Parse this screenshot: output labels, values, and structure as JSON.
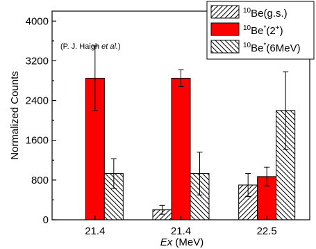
{
  "chart_data": {
    "type": "bar",
    "categories": [
      "21.4",
      "21.4",
      "22.5"
    ],
    "xlabel": {
      "italic": "Ex",
      "rest": " (MeV)"
    },
    "ylabel": "Normalized Counts",
    "ylim": [
      0,
      4200
    ],
    "yticks": [
      0,
      800,
      1600,
      2400,
      3200,
      4000
    ],
    "grid": false,
    "legend_position": "top-right",
    "annotation": {
      "prefix": "(P. J. Haigh ",
      "italic": "et al.",
      "suffix": ")"
    },
    "series": [
      {
        "name": "10Be(g.s.)",
        "legend": {
          "sup": "10",
          "base": "Be",
          "star": "",
          "suffix": "(g.s.)",
          "suffix_sup": ""
        },
        "color": "#ffffff",
        "pattern": "hatch-fwd",
        "values": [
          null,
          200,
          700
        ],
        "errors": [
          null,
          90,
          230
        ]
      },
      {
        "name": "10Be*(2+)",
        "legend": {
          "sup": "10",
          "base": "Be",
          "star": "*",
          "suffix": "(2",
          "suffix_sup": "+",
          "suffix_end": ")"
        },
        "color": "#ff0000",
        "pattern": "solid",
        "values": [
          2850,
          2850,
          870
        ],
        "errors": [
          650,
          170,
          190
        ]
      },
      {
        "name": "10Be*(6MeV)",
        "legend": {
          "sup": "10",
          "base": "Be",
          "star": "*",
          "suffix": "(6MeV)",
          "suffix_sup": ""
        },
        "color": "#ffffff",
        "pattern": "hatch-back",
        "values": [
          930,
          930,
          2200
        ],
        "errors": [
          300,
          430,
          780
        ]
      }
    ]
  }
}
